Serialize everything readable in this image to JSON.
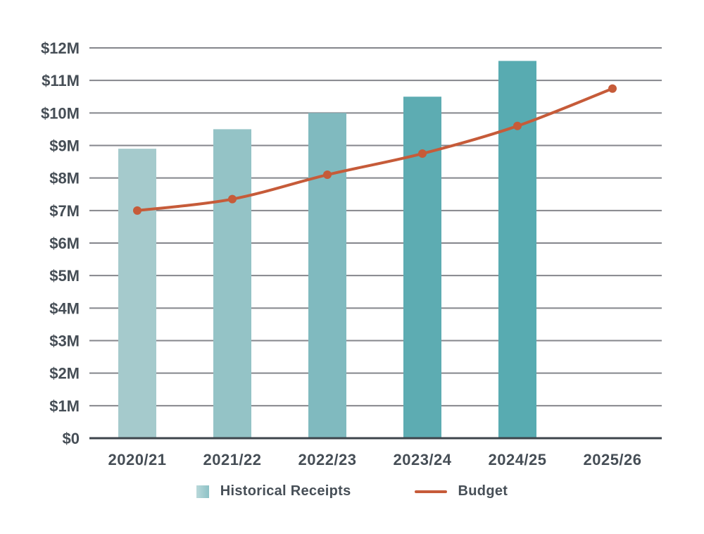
{
  "chart_data": {
    "type": "bar",
    "title": "",
    "xlabel": "",
    "ylabel": "",
    "categories": [
      "2020/21",
      "2021/22",
      "2022/23",
      "2023/24",
      "2024/25",
      "2025/26"
    ],
    "series": [
      {
        "name": "Historical Receipts",
        "type": "bar",
        "values": [
          8.9,
          9.5,
          10.0,
          10.5,
          11.6,
          null
        ],
        "colors": [
          "#a5cacc",
          "#94c3c6",
          "#80babf",
          "#5dacb2",
          "#58abb1"
        ]
      },
      {
        "name": "Budget",
        "type": "line",
        "values": [
          7.0,
          7.35,
          8.1,
          8.75,
          9.6,
          10.75
        ],
        "color": "#c65b39"
      }
    ],
    "unit": "millions USD",
    "ylim": [
      0,
      12
    ],
    "y_tick_step": 1,
    "y_tick_labels": [
      "$0",
      "$1M",
      "$2M",
      "$3M",
      "$4M",
      "$5M",
      "$6M",
      "$7M",
      "$8M",
      "$9M",
      "$10M",
      "$11M",
      "$12M"
    ],
    "grid": true,
    "legend_position": "bottom",
    "colors": {
      "grid": "#85868c",
      "axis": "#3e454c",
      "text": "#464e56"
    }
  },
  "legend": {
    "historical_label": "Historical Receipts",
    "budget_label": "Budget"
  }
}
